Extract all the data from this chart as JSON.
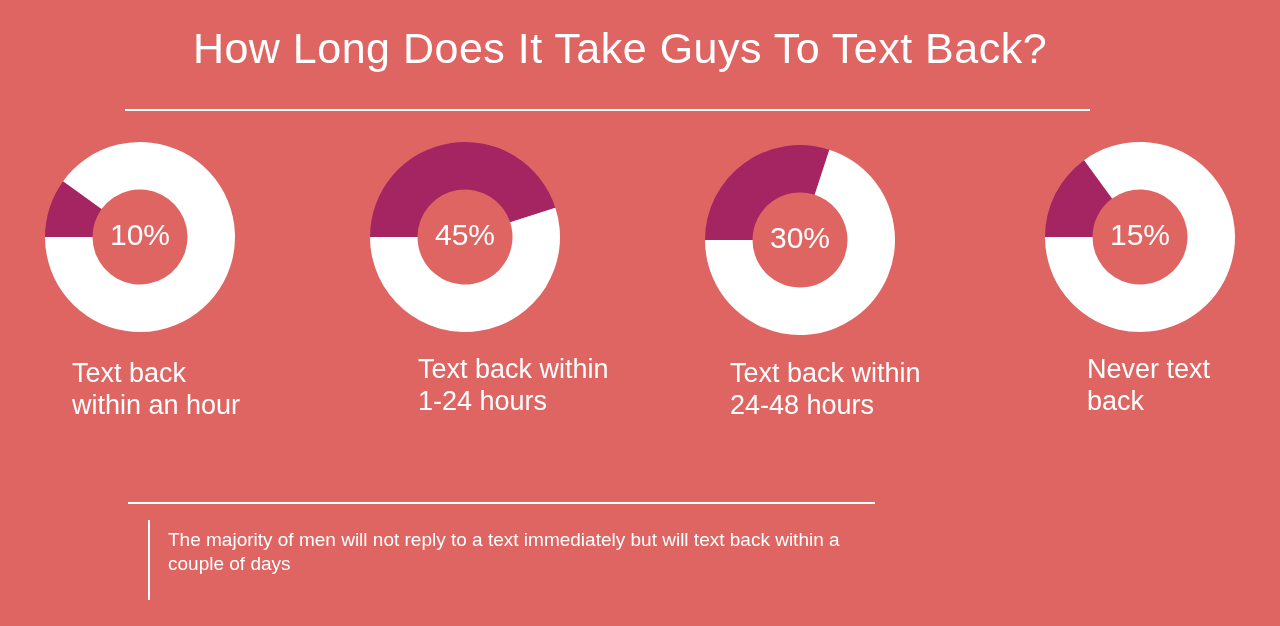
{
  "chart_data": [
    {
      "type": "other",
      "title": "How Long Does It Take Guys To Text Back?",
      "annotations": [
        "The majority of men will not reply to a text immediately but will text back within a couple of days"
      ]
    },
    {
      "type": "donut",
      "title": "Text back within an hour",
      "categories": [
        null,
        null
      ],
      "values": [
        10,
        90
      ],
      "colors": [
        "#a52462",
        "#ffffff"
      ],
      "annotations": [
        "10%"
      ]
    },
    {
      "type": "donut",
      "title": "Text back within 1-24 hours",
      "categories": [
        null,
        null
      ],
      "values": [
        45,
        55
      ],
      "colors": [
        "#a52462",
        "#ffffff"
      ],
      "annotations": [
        "45%"
      ]
    },
    {
      "type": "donut",
      "title": "Text back within 24-48 hours",
      "categories": [
        null,
        null
      ],
      "values": [
        30,
        70
      ],
      "colors": [
        "#a52462",
        "#ffffff"
      ],
      "annotations": [
        "30%"
      ]
    },
    {
      "type": "donut",
      "title": "Never text back",
      "categories": [
        null,
        null
      ],
      "values": [
        15,
        85
      ],
      "colors": [
        "#a52462",
        "#ffffff"
      ],
      "annotations": [
        "15%"
      ]
    }
  ]
}
